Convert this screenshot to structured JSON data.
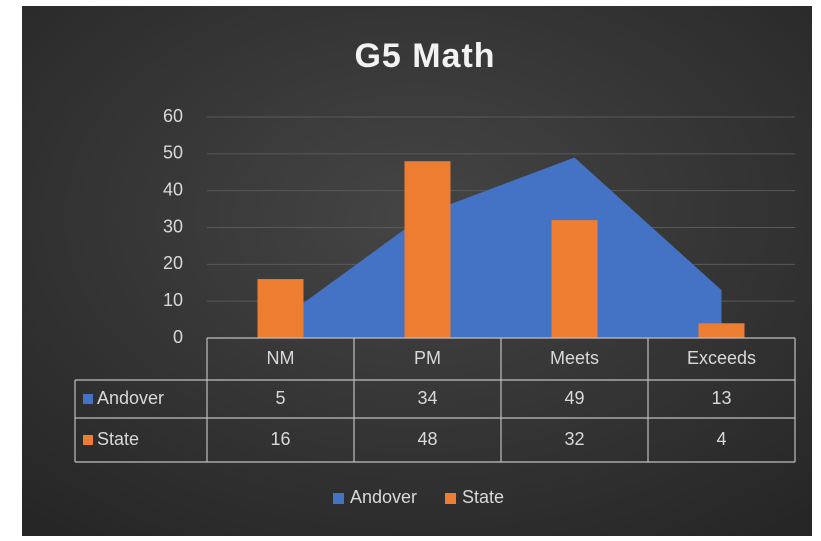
{
  "chart_data": {
    "type": "bar",
    "title": "G5 Math",
    "categories": [
      "NM",
      "PM",
      "Meets",
      "Exceeds"
    ],
    "series": [
      {
        "name": "Andover",
        "type": "area",
        "color": "#4472c4",
        "values": [
          5,
          34,
          49,
          13
        ]
      },
      {
        "name": "State",
        "type": "bar",
        "color": "#ed7d31",
        "values": [
          16,
          48,
          32,
          4
        ]
      }
    ],
    "ylim": [
      0,
      60
    ],
    "yticks": [
      0,
      10,
      20,
      30,
      40,
      50,
      60
    ],
    "grid": true,
    "legend": "bottom",
    "data_table": true
  }
}
